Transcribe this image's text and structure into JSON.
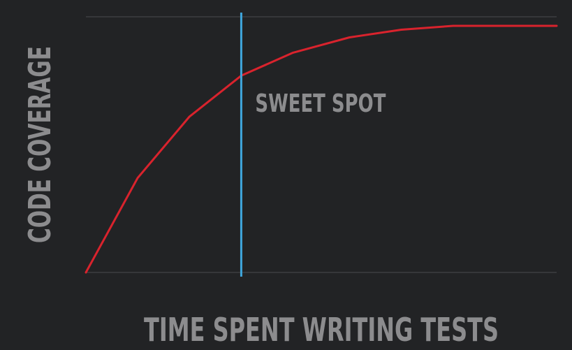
{
  "chart_data": {
    "type": "line",
    "xlabel": "TIME SPENT WRITING TESTS",
    "ylabel": "CODE COVERAGE",
    "xlim": [
      0,
      1
    ],
    "ylim": [
      0,
      1
    ],
    "grid": false,
    "series": [
      {
        "x": [
          0,
          0.11,
          0.22,
          0.33,
          0.44,
          0.56,
          0.67,
          0.78,
          0.89,
          1.0
        ],
        "y": [
          0,
          0.37,
          0.61,
          0.77,
          0.86,
          0.92,
          0.95,
          0.965,
          0.965,
          0.965
        ],
        "color": "#d9232d"
      }
    ],
    "annotations": [
      {
        "type": "vertical-line",
        "x": 0.33,
        "label": "SWEET SPOT",
        "color": "#3fa6dc"
      }
    ],
    "axis_color": "#4a4b4e",
    "text_color": "#8c8c8e"
  }
}
